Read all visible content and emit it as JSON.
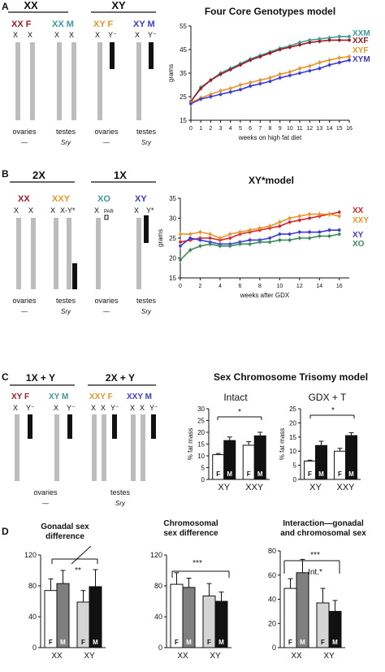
{
  "panels": {
    "A": {
      "label": "A",
      "groups": [
        {
          "title": "XX",
          "genotypes": [
            "XX F"
          ]
        },
        {
          "title": "XY",
          "genotypes": [
            "XY F",
            "XY M"
          ]
        }
      ],
      "genotype_labels": [
        "XX",
        "F",
        "XX",
        "M",
        "XY",
        "F",
        "XY",
        "M"
      ],
      "chrom_labels": [
        "X",
        "X",
        "X",
        "X",
        "X",
        "Y⁻",
        "X",
        "Y⁻"
      ],
      "gonads": [
        "ovaries",
        "testes",
        "ovaries",
        "testes"
      ],
      "genes": [
        "—",
        "Sry",
        "—",
        "Sry"
      ]
    },
    "B": {
      "label": "B",
      "groups": [
        "2X",
        "1X"
      ],
      "genotype_labels": [
        "XX",
        "XXY",
        "XO",
        "XY"
      ],
      "chrom_labels": [
        "X",
        "X",
        "X",
        "X-Y*",
        "X",
        "PAR",
        "X",
        "Y*"
      ],
      "gonads": [
        "ovaries",
        "testes",
        "ovaries",
        "testes"
      ],
      "genes": [
        "—",
        "Sry",
        "—",
        "Sry"
      ]
    },
    "C": {
      "label": "C",
      "title": "Sex Chromosome Trisomy model",
      "groups": [
        "1X + Y",
        "2X + Y"
      ],
      "genotype_labels": [
        "XY F",
        "XY M",
        "XXY F",
        "XXY M"
      ],
      "chrom_labels": [
        "X",
        "Y⁻",
        "X",
        "Y⁻",
        "X",
        "X",
        "Y⁻",
        "X",
        "X",
        "Y⁻"
      ],
      "gonads": [
        "ovaries",
        "testes"
      ],
      "genes": [
        "—",
        "Sry"
      ]
    },
    "D": {
      "label": "D"
    }
  },
  "colors": {
    "dark_red": "#9e1b22",
    "teal": "#3a9b9b",
    "orange": "#e8952a",
    "blue": "#3c3ccf",
    "red": "#d6262a",
    "green": "#3c8c5a",
    "bar_gray": "#bdbdbd",
    "bar_dark": "#7f7f7f"
  },
  "chart_data": [
    {
      "type": "line",
      "title": "Four Core Genotypes model",
      "xlabel": "weeks on high fat diet",
      "ylabel": "grams",
      "x": [
        0,
        1,
        2,
        3,
        4,
        5,
        6,
        7,
        8,
        9,
        10,
        11,
        12,
        13,
        14,
        15,
        16
      ],
      "xlim": [
        0,
        16
      ],
      "ylim": [
        15,
        55
      ],
      "yticks": [
        15,
        25,
        35,
        45,
        55
      ],
      "series": [
        {
          "name": "XXM",
          "color": "#3a9b9b",
          "values": [
            23,
            29,
            32,
            35,
            37,
            39,
            41,
            42.5,
            44,
            45.5,
            46.5,
            48,
            49,
            49.5,
            50,
            50.5,
            50.5
          ]
        },
        {
          "name": "XXF",
          "color": "#9e1b22",
          "values": [
            23,
            28.5,
            32,
            34.5,
            36.5,
            38.5,
            40.5,
            42,
            43.5,
            45,
            46,
            47,
            48,
            48.5,
            49,
            49,
            49
          ]
        },
        {
          "name": "XYF",
          "color": "#e8952a",
          "values": [
            22.5,
            24.5,
            26,
            27.5,
            28.5,
            30,
            31,
            32,
            33,
            34.5,
            35.5,
            37,
            38,
            39.5,
            40.5,
            41.5,
            42
          ]
        },
        {
          "name": "XYM",
          "color": "#3c3ccf",
          "values": [
            22,
            24,
            25,
            26,
            27,
            28,
            29.5,
            30.5,
            31.5,
            33,
            34,
            35,
            36,
            37,
            38.5,
            39.5,
            40.5
          ]
        }
      ]
    },
    {
      "type": "line",
      "title": "XY*model",
      "xlabel": "weeks after GDX",
      "ylabel": "grams",
      "x": [
        0,
        1,
        2,
        3,
        4,
        5,
        6,
        7,
        8,
        9,
        10,
        11,
        12,
        13,
        14,
        15,
        16
      ],
      "xlim": [
        0,
        17
      ],
      "ylim": [
        15,
        35
      ],
      "yticks": [
        15,
        20,
        25,
        30,
        35
      ],
      "xticks": [
        0,
        2,
        4,
        6,
        8,
        10,
        12,
        14,
        16
      ],
      "series": [
        {
          "name": "XX",
          "color": "#d6262a",
          "values": [
            24,
            24.5,
            25,
            25,
            24.5,
            25,
            26,
            26.5,
            27,
            27.5,
            28,
            29,
            29.5,
            30,
            30.5,
            31,
            31.5
          ]
        },
        {
          "name": "XXY",
          "color": "#e8952a",
          "values": [
            26,
            26,
            26.5,
            26,
            25,
            26,
            26.5,
            27,
            27.5,
            28,
            29,
            30,
            30.5,
            31,
            31,
            31,
            30.5
          ]
        },
        {
          "name": "XY",
          "color": "#3c3ccf",
          "values": [
            23,
            25,
            24.5,
            24,
            23.5,
            23.5,
            24,
            24.5,
            24.5,
            25,
            26,
            26,
            26.5,
            26.5,
            26.5,
            27,
            27
          ]
        },
        {
          "name": "XO",
          "color": "#3c8c5a",
          "values": [
            19.5,
            22,
            23,
            23.5,
            23,
            23,
            23.5,
            23.5,
            24,
            24,
            24.5,
            24.5,
            25,
            25,
            25.5,
            25.5,
            26
          ]
        }
      ]
    },
    {
      "type": "bar",
      "title": "Intact",
      "ylabel": "% fat mass",
      "categories": [
        "XY",
        "XXY"
      ],
      "bar_labels": [
        "F",
        "M",
        "F",
        "M"
      ],
      "ylim": [
        0,
        30
      ],
      "yticks": [
        0,
        5,
        10,
        15,
        20,
        25,
        30
      ],
      "series": [
        {
          "name": "F",
          "values": [
            10.5,
            14.5
          ],
          "errors": [
            0.5,
            1.5
          ]
        },
        {
          "name": "M",
          "values": [
            16.5,
            18.5
          ],
          "errors": [
            1.5,
            1.5
          ]
        }
      ],
      "annotation": "*"
    },
    {
      "type": "bar",
      "title": "GDX + T",
      "ylabel": "% fat mass",
      "categories": [
        "XY",
        "XXY"
      ],
      "bar_labels": [
        "F",
        "M",
        "F",
        "M"
      ],
      "ylim": [
        0,
        25
      ],
      "yticks": [
        0,
        5,
        10,
        15,
        20,
        25
      ],
      "series": [
        {
          "name": "F",
          "values": [
            6.5,
            10
          ],
          "errors": [
            0.3,
            1
          ]
        },
        {
          "name": "M",
          "values": [
            12,
            15.5
          ],
          "errors": [
            1.5,
            1
          ]
        }
      ],
      "annotation": "*"
    },
    {
      "type": "bar",
      "title": "Gonadal sex difference",
      "categories": [
        "XX",
        "XY"
      ],
      "bar_labels": [
        "F",
        "M",
        "F",
        "M"
      ],
      "ylim": [
        0,
        120
      ],
      "yticks": [
        0,
        40,
        80,
        120
      ],
      "series": [
        {
          "name": "F",
          "values": [
            74,
            59
          ],
          "errors": [
            15,
            15
          ]
        },
        {
          "name": "M",
          "values": [
            83,
            79
          ],
          "errors": [
            17,
            22
          ]
        }
      ],
      "annotation": "**"
    },
    {
      "type": "bar",
      "title": "Chromosomal sex difference",
      "categories": [
        "XX",
        "XY"
      ],
      "bar_labels": [
        "F",
        "M",
        "F",
        "M"
      ],
      "ylim": [
        0,
        120
      ],
      "yticks": [
        0,
        40,
        80,
        120
      ],
      "series": [
        {
          "name": "F",
          "values": [
            82,
            67
          ],
          "errors": [
            15,
            16
          ]
        },
        {
          "name": "M",
          "values": [
            78,
            60
          ],
          "errors": [
            12,
            12
          ]
        }
      ],
      "annotation": "***"
    },
    {
      "type": "bar",
      "title": "Interaction—gonadal and chromosomal sex",
      "categories": [
        "XX",
        "XY"
      ],
      "bar_labels": [
        "F",
        "M",
        "F",
        "M"
      ],
      "ylim": [
        0,
        80
      ],
      "yticks": [
        0,
        20,
        40,
        60,
        80
      ],
      "series": [
        {
          "name": "F",
          "values": [
            49,
            37
          ],
          "errors": [
            8,
            12
          ]
        },
        {
          "name": "M",
          "values": [
            62,
            30
          ],
          "errors": [
            11,
            9
          ]
        }
      ],
      "annotation": "***",
      "annotation2": "Int.*"
    }
  ]
}
